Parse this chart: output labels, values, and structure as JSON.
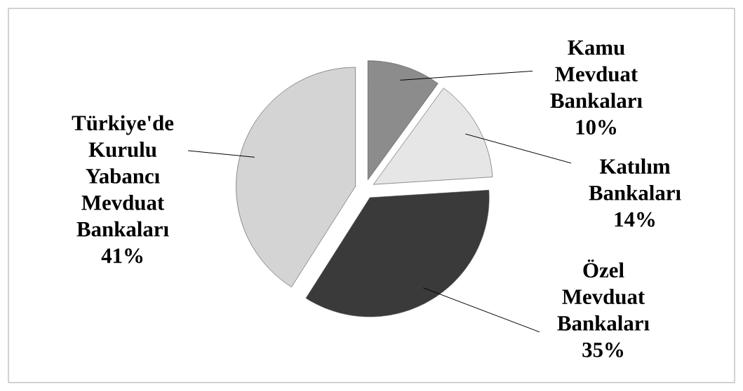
{
  "chart_data": {
    "type": "pie",
    "categories": [
      "Kamu Mevduat Bankaları",
      "Katılım Bankaları",
      "Özel Mevduat Bankaları",
      "Türkiye'de Kurulu Yabancı Mevduat Bankaları"
    ],
    "values": [
      10,
      14,
      35,
      41
    ],
    "colors": [
      "#8c8c8c",
      "#e6e6e6",
      "#3a3a3a",
      "#d4d4d4"
    ],
    "value_labels": [
      "10%",
      "14%",
      "35%",
      "41%"
    ]
  }
}
